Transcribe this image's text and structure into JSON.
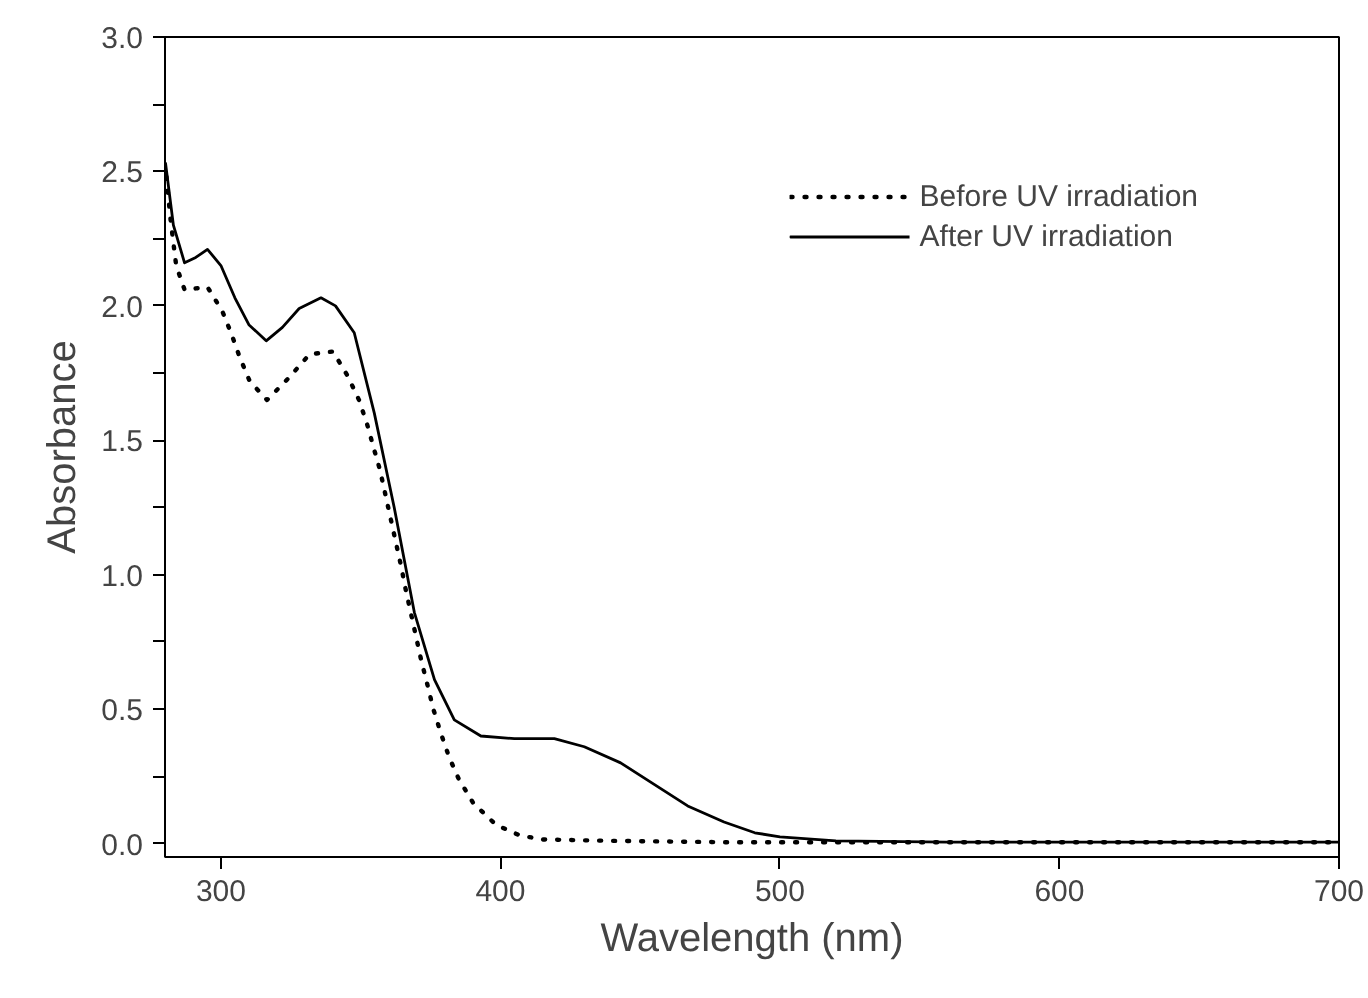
{
  "chart_data": {
    "type": "line",
    "xlabel": "Wavelength (nm)",
    "ylabel": "Absorbance",
    "xlim": [
      280,
      700
    ],
    "ylim": [
      -0.05,
      3.0
    ],
    "xticks": [
      300,
      400,
      500,
      600,
      700
    ],
    "yticks": [
      {
        "value": 0,
        "label": "0.0"
      },
      {
        "value": 0.25,
        "label": null
      },
      {
        "value": 0.5,
        "label": "0.5"
      },
      {
        "value": 0.75,
        "label": null
      },
      {
        "value": 1,
        "label": "1.0"
      },
      {
        "value": 1.25,
        "label": null
      },
      {
        "value": 1.5,
        "label": "1.5"
      },
      {
        "value": 1.75,
        "label": null
      },
      {
        "value": 2,
        "label": "2.0"
      },
      {
        "value": 2.25,
        "label": null
      },
      {
        "value": 2.5,
        "label": "2.5"
      },
      {
        "value": 2.75,
        "label": null
      },
      {
        "value": 3,
        "label": "3.0"
      }
    ],
    "grid": false,
    "legend": "top right",
    "marker": "none",
    "series": [
      {
        "name": "Before UV irradiation",
        "color": "#000000",
        "line_style": "dotted",
        "x": [
          280.5,
          282,
          284,
          287,
          295.2,
          300.5,
          303.6,
          306.7,
          310.3,
          316.5,
          324.1,
          331.7,
          340.1,
          345.3,
          349.4,
          352.3,
          354.7,
          356.9,
          358.8,
          360.7,
          362.6,
          364.5,
          366.2,
          367.9,
          369.8,
          371.7,
          373.9,
          376,
          378.7,
          381.7,
          385.1,
          390.3,
          398.4,
          407,
          415.4,
          440,
          480,
          520,
          600,
          700
        ],
        "values": [
          2.48,
          2.32,
          2.15,
          2.06,
          2.07,
          1.98,
          1.9,
          1.81,
          1.72,
          1.65,
          1.73,
          1.82,
          1.83,
          1.74,
          1.65,
          1.56,
          1.47,
          1.39,
          1.3,
          1.21,
          1.12,
          1.03,
          0.94,
          0.86,
          0.77,
          0.68,
          0.59,
          0.5,
          0.41,
          0.32,
          0.24,
          0.15,
          0.07,
          0.03,
          0.015,
          0.01,
          0.005,
          0.005,
          0.005,
          0.005
        ]
      },
      {
        "name": "After UV irradiation",
        "color": "#000000",
        "line_style": "solid",
        "x": [
          280.2,
          283,
          287,
          291,
          295.2,
          300,
          305,
          310,
          316.2,
          322,
          328,
          335.8,
          341,
          347.7,
          354.9,
          362,
          369.2,
          376.4,
          383.5,
          393,
          405,
          419.3,
          430,
          443,
          455,
          467,
          480,
          491,
          500,
          520,
          560,
          600,
          700
        ],
        "values": [
          2.53,
          2.3,
          2.16,
          2.18,
          2.21,
          2.15,
          2.03,
          1.93,
          1.87,
          1.92,
          1.99,
          2.03,
          2.0,
          1.9,
          1.6,
          1.25,
          0.86,
          0.61,
          0.46,
          0.4,
          0.39,
          0.39,
          0.36,
          0.3,
          0.22,
          0.14,
          0.08,
          0.04,
          0.025,
          0.01,
          0.005,
          0.005,
          0.005
        ]
      }
    ]
  }
}
